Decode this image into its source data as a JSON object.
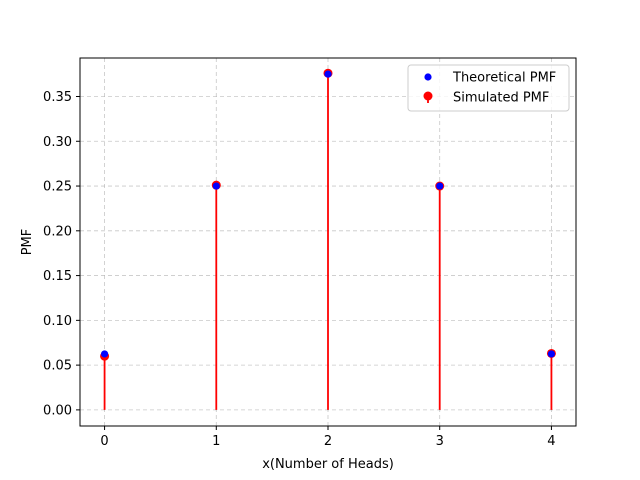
{
  "chart_data": {
    "type": "scatter",
    "title": "",
    "xlabel": "x(Number of Heads)",
    "ylabel": "PMF",
    "x": [
      0,
      1,
      2,
      3,
      4
    ],
    "xticks": [
      0,
      1,
      2,
      3,
      4
    ],
    "yticks": [
      "0.00",
      "0.05",
      "0.10",
      "0.15",
      "0.20",
      "0.25",
      "0.30",
      "0.35"
    ],
    "xlim": [
      -0.22,
      4.22
    ],
    "ylim": [
      -0.018,
      0.393
    ],
    "grid": true,
    "legend_position": "top-right",
    "series": [
      {
        "name": "Theoretical PMF",
        "kind": "scatter",
        "color": "#0000ff",
        "values": [
          0.0625,
          0.25,
          0.375,
          0.25,
          0.0625
        ]
      },
      {
        "name": "Simulated PMF",
        "kind": "stem",
        "color": "#ff0000",
        "values": [
          0.06,
          0.251,
          0.376,
          0.25,
          0.063
        ]
      }
    ]
  }
}
